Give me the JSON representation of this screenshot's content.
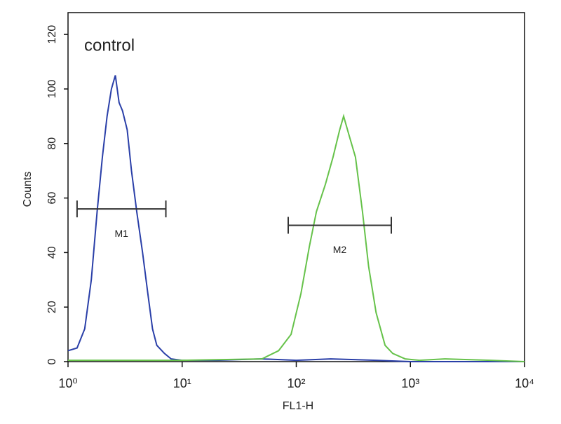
{
  "chart_data": {
    "type": "histogram-line",
    "annotation": "control",
    "xlabel": "FL1-H",
    "ylabel": "Counts",
    "xscale": "log",
    "xlim": [
      1,
      10000
    ],
    "xticks": [
      {
        "value": 1,
        "label": "10⁰"
      },
      {
        "value": 10,
        "label": "10¹"
      },
      {
        "value": 100,
        "label": "10²"
      },
      {
        "value": 1000,
        "label": "10³"
      },
      {
        "value": 10000,
        "label": "10⁴"
      }
    ],
    "ylim": [
      0,
      128
    ],
    "yticks": [
      0,
      20,
      40,
      60,
      80,
      100,
      120
    ],
    "series": [
      {
        "color": "#2a3fa8",
        "x": [
          1,
          1.2,
          1.4,
          1.6,
          1.8,
          2.0,
          2.2,
          2.4,
          2.6,
          2.8,
          3.0,
          3.3,
          3.6,
          4.0,
          4.5,
          5.0,
          5.5,
          6.0,
          7.0,
          8.0,
          10,
          20,
          50,
          100,
          200,
          500,
          1000,
          10000
        ],
        "values": [
          4,
          5,
          12,
          30,
          55,
          75,
          90,
          100,
          105,
          95,
          92,
          85,
          70,
          55,
          40,
          25,
          12,
          6,
          3,
          1,
          0.5,
          0.5,
          1,
          0.5,
          1,
          0.5,
          0,
          0
        ]
      },
      {
        "color": "#66c24a",
        "x": [
          1,
          10,
          50,
          70,
          90,
          110,
          130,
          150,
          180,
          210,
          240,
          260,
          290,
          330,
          380,
          430,
          500,
          600,
          700,
          900,
          1200,
          2000,
          5000,
          10000
        ],
        "values": [
          0.5,
          0.5,
          1,
          4,
          10,
          25,
          42,
          55,
          65,
          75,
          85,
          90,
          83,
          75,
          55,
          35,
          18,
          6,
          3,
          1,
          0.5,
          1,
          0.5,
          0
        ]
      }
    ],
    "markers": [
      {
        "label": "M1",
        "x": [
          1.2,
          7.2
        ],
        "y": 56
      },
      {
        "label": "M2",
        "x": [
          85,
          680
        ],
        "y": 50
      }
    ]
  }
}
